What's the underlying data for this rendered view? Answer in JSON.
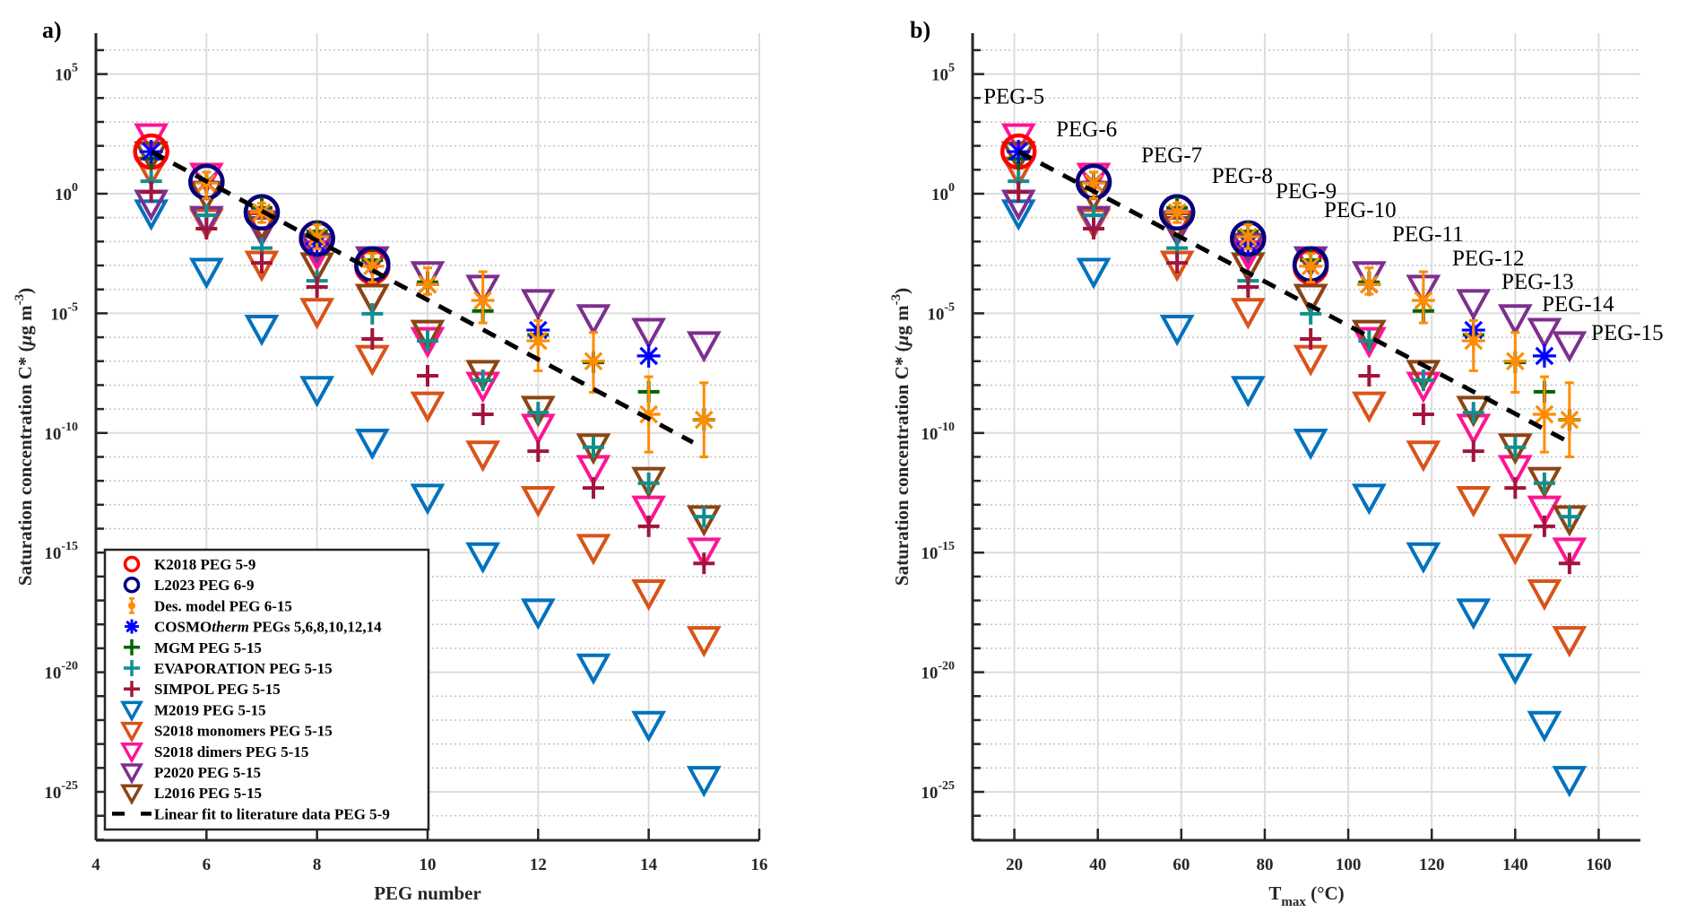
{
  "figure": {
    "panel_labels": [
      "a)",
      "b)"
    ]
  },
  "chart_data": [
    {
      "type": "scatter",
      "panel": "a)",
      "title": "",
      "xlabel": "PEG number",
      "ylabel": "Saturation concentration C* (μg m⁻³)",
      "ylabel_parts": {
        "main": "Saturation concentration C* (",
        "mu": "μ",
        "rest": "g m",
        "sup": "-3",
        "close": ")"
      },
      "xlim": [
        4,
        16
      ],
      "ylim_log10": [
        -27,
        6.7
      ],
      "yscale": "log",
      "xticks": [
        4,
        6,
        8,
        10,
        12,
        14,
        16
      ],
      "yticks_log10": [
        5,
        0,
        -5,
        -10,
        -15,
        -20,
        -25
      ],
      "ytick_labels": [
        {
          "base": "10",
          "exp": "5"
        },
        {
          "base": "10",
          "exp": "0"
        },
        {
          "base": "10",
          "exp": "-5"
        },
        {
          "base": "10",
          "exp": "-10"
        },
        {
          "base": "10",
          "exp": "-15"
        },
        {
          "base": "10",
          "exp": "-20"
        },
        {
          "base": "10",
          "exp": "-25"
        }
      ],
      "grid": true,
      "legend_position": "bottom-left"
    },
    {
      "type": "scatter",
      "panel": "b)",
      "title": "",
      "xlabel": "T",
      "xlabel_sub": "max",
      "xlabel_unit": " (°C)",
      "ylabel": "Saturation concentration C* (μg m⁻³)",
      "ylabel_parts": {
        "main": "Saturation concentration C* (",
        "mu": "μ",
        "rest": "g m",
        "sup": "-3",
        "close": ")"
      },
      "xlim": [
        10,
        170
      ],
      "ylim_log10": [
        -27,
        6.7
      ],
      "yscale": "log",
      "xticks": [
        20,
        40,
        60,
        80,
        100,
        120,
        140,
        160
      ],
      "yticks_log10": [
        5,
        0,
        -5,
        -10,
        -15,
        -20,
        -25
      ],
      "ytick_labels": [
        {
          "base": "10",
          "exp": "5"
        },
        {
          "base": "10",
          "exp": "0"
        },
        {
          "base": "10",
          "exp": "-5"
        },
        {
          "base": "10",
          "exp": "-10"
        },
        {
          "base": "10",
          "exp": "-15"
        },
        {
          "base": "10",
          "exp": "-20"
        },
        {
          "base": "10",
          "exp": "-25"
        }
      ],
      "grid": true,
      "annotations": [
        {
          "text": "PEG-5",
          "x": 12.6,
          "log10y": 4.1
        },
        {
          "text": "PEG-6",
          "x": 30,
          "log10y": 2.74
        },
        {
          "text": "PEG-7",
          "x": 50.4,
          "log10y": 1.65
        },
        {
          "text": "PEG-8",
          "x": 67.3,
          "log10y": 0.79
        },
        {
          "text": "PEG-9",
          "x": 82.6,
          "log10y": 0.15
        },
        {
          "text": "PEG-10",
          "x": 94.2,
          "log10y": -0.64
        },
        {
          "text": "PEG-11",
          "x": 110.5,
          "log10y": -1.65
        },
        {
          "text": "PEG-12",
          "x": 124.9,
          "log10y": -2.66
        },
        {
          "text": "PEG-13",
          "x": 136.7,
          "log10y": -3.64
        },
        {
          "text": "PEG-14",
          "x": 146.4,
          "log10y": -4.57
        },
        {
          "text": "PEG-15",
          "x": 158.2,
          "log10y": -5.77
        }
      ]
    }
  ],
  "peg_numbers": [
    5,
    6,
    7,
    8,
    9,
    10,
    11,
    12,
    13,
    14,
    15
  ],
  "tmax_c": [
    21,
    39,
    59,
    76,
    91,
    105,
    118,
    130,
    140,
    147,
    153
  ],
  "series": [
    {
      "name": "K2018 PEG 5-9",
      "marker": "circle-large",
      "color": "#ff0000",
      "peg": [
        5,
        6,
        7,
        8,
        9
      ],
      "log10C": [
        1.76,
        0.49,
        -0.78,
        -1.87,
        -3.05
      ]
    },
    {
      "name": "L2023 PEG 6-9",
      "marker": "circle-large",
      "color": "#000080",
      "peg": [
        6,
        7,
        8,
        9
      ],
      "log10C": [
        0.49,
        -0.78,
        -1.87,
        -2.95
      ]
    },
    {
      "name": "Des. model PEG 6-15",
      "marker": "errorbar-dot",
      "color": "#ff8c00",
      "peg": [
        6,
        7,
        8,
        9,
        10,
        11,
        12,
        13,
        14,
        15
      ],
      "log10C": [
        0.45,
        -0.78,
        -1.8,
        -3.03,
        -3.79,
        -4.46,
        -6.15,
        -7.0,
        -9.22,
        -9.45
      ],
      "err_low": [
        -0.2,
        -1.2,
        -2.3,
        -3.7,
        -4.2,
        -5.4,
        -7.4,
        -8.3,
        -10.8,
        -11.0
      ],
      "err_high": [
        0.9,
        -0.4,
        -1.3,
        -2.5,
        -3.1,
        -3.26,
        -5.3,
        -5.8,
        -7.65,
        -7.9
      ],
      "legend_marker": "errorbar-dot",
      "point_marker": "asterisk"
    },
    {
      "name_parts": [
        "COSMO",
        "therm",
        " PEGs 5,6,8,10,12,14"
      ],
      "name": "COSMOtherm PEGs 5,6,8,10,12,14",
      "marker": "asterisk",
      "color": "#0000ff",
      "peg": [
        5,
        6,
        8,
        10,
        12,
        14
      ],
      "log10C": [
        1.76,
        0.47,
        -2.1,
        -3.79,
        -5.7,
        -6.78
      ]
    },
    {
      "name": "MGM PEG 5-15",
      "marker": "plus",
      "color": "#006400",
      "peg": [
        5,
        6,
        7,
        8,
        9,
        10,
        11,
        12,
        13,
        14,
        15
      ],
      "log10C": [
        1.46,
        0.47,
        -0.59,
        -1.58,
        -2.78,
        -3.7,
        -4.9,
        -5.9,
        -7.05,
        -8.28,
        -9.45
      ]
    },
    {
      "name": "EVAPORATION PEG 5-15",
      "marker": "plus",
      "color": "#108f8f",
      "peg": [
        5,
        6,
        7,
        8,
        9,
        10,
        11,
        12,
        13,
        14,
        15
      ],
      "log10C": [
        0.52,
        -0.9,
        -2.27,
        -3.64,
        -5.02,
        -6.15,
        -7.8,
        -9.15,
        -10.6,
        -12.1,
        -13.5
      ]
    },
    {
      "name": "SIMPOL PEG 5-15",
      "marker": "plus",
      "color": "#a2143c",
      "peg": [
        5,
        6,
        7,
        8,
        9,
        10,
        11,
        12,
        13,
        14,
        15
      ],
      "log10C": [
        0.07,
        -1.46,
        -2.89,
        -3.9,
        -6.07,
        -7.61,
        -9.22,
        -10.76,
        -12.3,
        -13.9,
        -15.45
      ]
    },
    {
      "name": "M2019 PEG 5-15",
      "marker": "triangle-down",
      "color": "#0072bd",
      "peg": [
        5,
        6,
        7,
        8,
        9,
        10,
        11,
        12,
        13,
        14,
        15
      ],
      "log10C": [
        -0.82,
        -3.26,
        -5.64,
        -8.2,
        -10.4,
        -12.7,
        -15.15,
        -17.5,
        -19.8,
        -22.2,
        -24.5
      ]
    },
    {
      "name": "S2018 monomers PEG 5-15",
      "marker": "triangle-down",
      "color": "#d95319",
      "peg": [
        5,
        6,
        7,
        8,
        9,
        10,
        11,
        12,
        13,
        14,
        15
      ],
      "log10C": [
        0.97,
        -1.2,
        -2.96,
        -4.94,
        -6.9,
        -8.85,
        -10.9,
        -12.8,
        -14.8,
        -16.7,
        -18.65
      ]
    },
    {
      "name": "S2018 dimers PEG 5-15",
      "marker": "triangle-down",
      "color": "#ff1493",
      "peg": [
        5,
        6,
        7,
        8,
        9,
        10,
        11,
        12,
        13,
        14,
        15
      ],
      "log10C": [
        2.36,
        0.71,
        -1.27,
        -2.52,
        -4.35,
        -6.15,
        -8.02,
        -9.78,
        -11.5,
        -13.2,
        -14.95
      ]
    },
    {
      "name": "P2020 PEG 5-15",
      "marker": "triangle-down",
      "color": "#7e2f8e",
      "peg": [
        5,
        6,
        7,
        8,
        9,
        10,
        11,
        12,
        13,
        14,
        15
      ],
      "log10C": [
        -0.41,
        -1.09,
        -1.52,
        -2.22,
        -2.78,
        -3.4,
        -3.97,
        -4.57,
        -5.2,
        -5.77,
        -6.33
      ]
    },
    {
      "name": "L2016 PEG 5-15",
      "marker": "triangle-down",
      "color": "#8b4513",
      "peg": [
        5,
        6,
        7,
        8,
        9,
        10,
        11,
        12,
        13,
        14,
        15
      ],
      "log10C": [
        1.61,
        -0.04,
        -1.33,
        -3.03,
        -4.35,
        -5.85,
        -7.53,
        -9.03,
        -10.6,
        -12.0,
        -13.6
      ]
    }
  ],
  "linear_fit": {
    "name": "Linear fit to literature data PEG 5-9",
    "color": "#000000",
    "style": "dashed",
    "intercept_at_peg5_log10": 1.76,
    "slope_log10_per_peg": -1.24,
    "peg_range": [
      5,
      14.8
    ],
    "tmax_range": [
      21,
      153
    ]
  }
}
